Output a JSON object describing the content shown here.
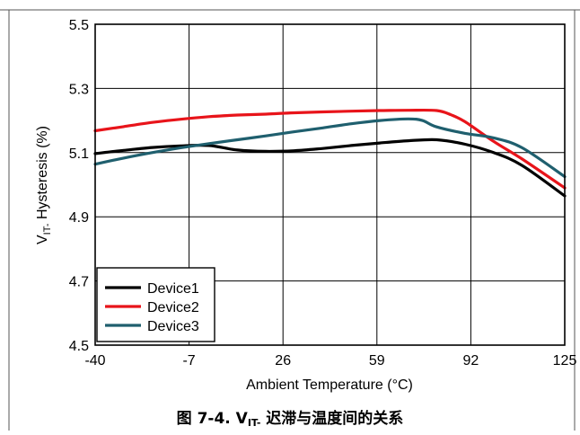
{
  "chart_data": {
    "type": "line",
    "xlabel": "Ambient Temperature (°C)",
    "ylabel_main": "V",
    "ylabel_sub": "IT-",
    "ylabel_rest": " Hysteresis (%)",
    "xlim": [
      -40,
      125
    ],
    "ylim": [
      4.5,
      5.5
    ],
    "x_ticks": [
      -40,
      -7,
      26,
      59,
      92,
      125
    ],
    "y_ticks": [
      4.5,
      4.7,
      4.9,
      5.1,
      5.3,
      5.5
    ],
    "y_tick_labels": [
      "4.5",
      "4.7",
      "4.9",
      "5.1",
      "5.3",
      "5.5"
    ],
    "grid": true,
    "legend_position": "bottom-left",
    "series": [
      {
        "name": "Device1",
        "color": "#000000",
        "x": [
          -40,
          -30,
          -20,
          -10,
          0,
          10,
          20,
          30,
          40,
          50,
          60,
          70,
          80,
          90,
          100,
          110,
          125
        ],
        "y": [
          5.097,
          5.107,
          5.116,
          5.121,
          5.122,
          5.108,
          5.104,
          5.106,
          5.113,
          5.122,
          5.13,
          5.137,
          5.14,
          5.126,
          5.1,
          5.06,
          4.965
        ]
      },
      {
        "name": "Device2",
        "color": "#e8141a",
        "x": [
          -40,
          -30,
          -20,
          -10,
          0,
          10,
          20,
          30,
          40,
          50,
          60,
          70,
          80,
          85,
          90,
          100,
          110,
          125
        ],
        "y": [
          5.168,
          5.181,
          5.194,
          5.204,
          5.212,
          5.217,
          5.22,
          5.224,
          5.227,
          5.229,
          5.231,
          5.232,
          5.231,
          5.218,
          5.196,
          5.135,
          5.08,
          4.99
        ]
      },
      {
        "name": "Device3",
        "color": "#1f5f6e",
        "x": [
          -40,
          -30,
          -20,
          -10,
          0,
          10,
          20,
          30,
          40,
          50,
          60,
          70,
          75,
          80,
          90,
          100,
          110,
          125
        ],
        "y": [
          5.064,
          5.083,
          5.1,
          5.115,
          5.128,
          5.14,
          5.152,
          5.165,
          5.177,
          5.19,
          5.2,
          5.205,
          5.2,
          5.18,
          5.16,
          5.146,
          5.115,
          5.025
        ]
      }
    ]
  },
  "caption": {
    "prefix": "图 7-4. V",
    "sub": "IT-",
    "suffix": " 迟滞与温度间的关系"
  }
}
